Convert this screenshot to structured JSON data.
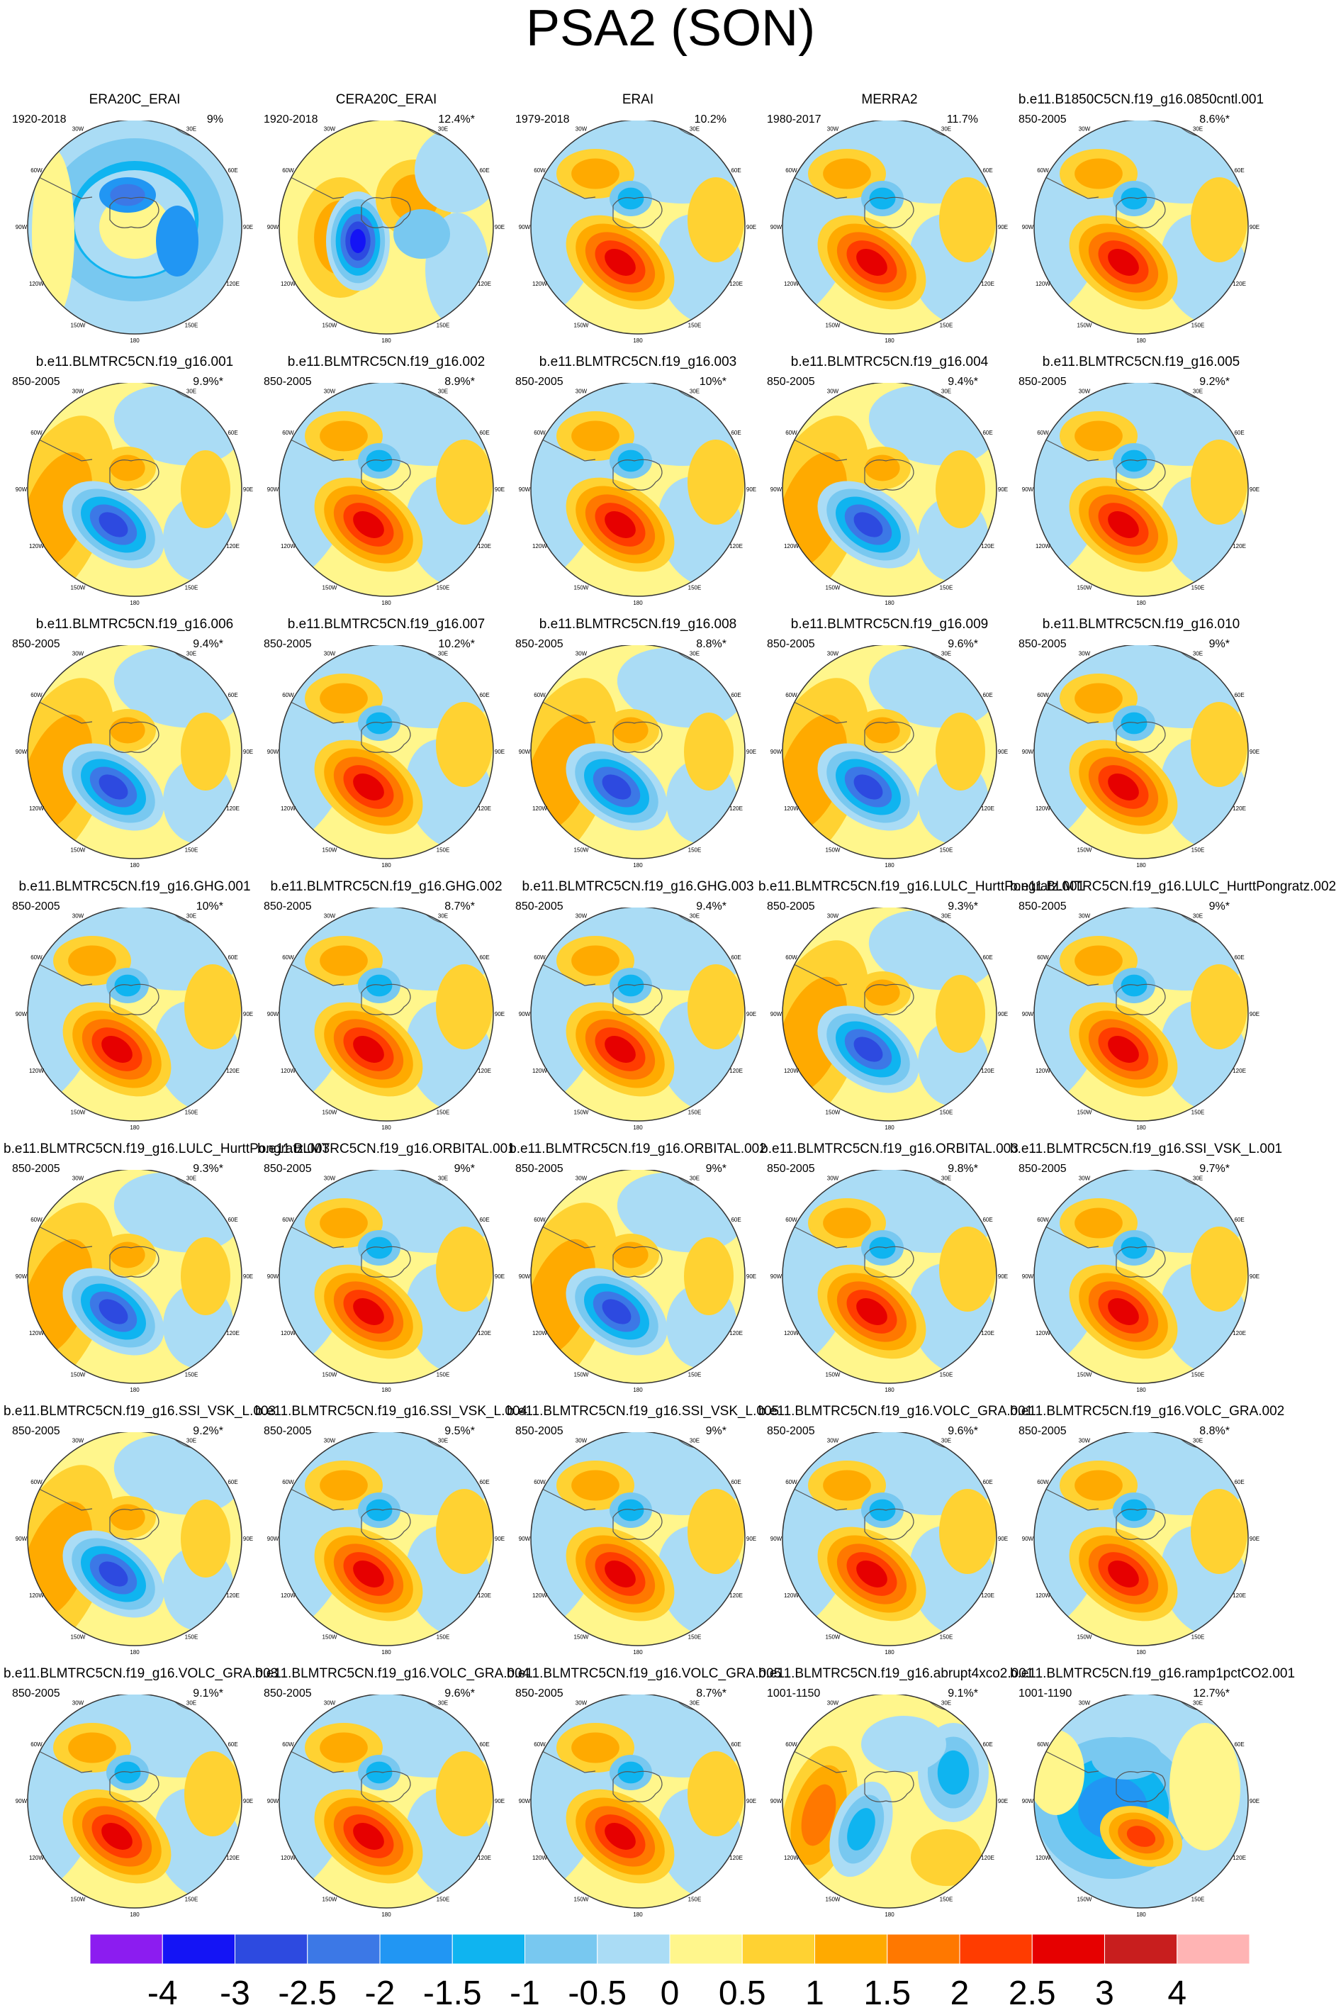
{
  "title": "PSA2 (SON)",
  "colorbar": {
    "labels": [
      "-4",
      "-3",
      "-2.5",
      "-2",
      "-1.5",
      "-1",
      "-0.5",
      "0",
      "0.5",
      "1",
      "1.5",
      "2",
      "2.5",
      "3",
      "4"
    ],
    "colors": [
      "#8c1cf0",
      "#1414f5",
      "#2d4ae0",
      "#3c78e6",
      "#2196f3",
      "#0fb4f0",
      "#78c8f0",
      "#aadcf5",
      "#fff68c",
      "#ffd232",
      "#ffaa00",
      "#ff7800",
      "#ff3c00",
      "#e60000",
      "#c81e1e",
      "#ffb4b4"
    ]
  },
  "panels": [
    {
      "title": "ERA20C_ERAI",
      "years": "1920-2018",
      "pct": "9%",
      "pattern": "ring"
    },
    {
      "title": "CERA20C_ERAI",
      "years": "1920-2018",
      "pct": "12.4%*",
      "pattern": "cera"
    },
    {
      "title": "ERAI",
      "years": "1979-2018",
      "pct": "10.2%",
      "pattern": "pos"
    },
    {
      "title": "MERRA2",
      "years": "1980-2017",
      "pct": "11.7%",
      "pattern": "pos"
    },
    {
      "title": "b.e11.B1850C5CN.f19_g16.0850cntl.001",
      "years": "850-2005",
      "pct": "8.6%*",
      "pattern": "pos"
    },
    {
      "title": "b.e11.BLMTRC5CN.f19_g16.001",
      "years": "850-2005",
      "pct": "9.9%*",
      "pattern": "neg"
    },
    {
      "title": "b.e11.BLMTRC5CN.f19_g16.002",
      "years": "850-2005",
      "pct": "8.9%*",
      "pattern": "pos"
    },
    {
      "title": "b.e11.BLMTRC5CN.f19_g16.003",
      "years": "850-2005",
      "pct": "10%*",
      "pattern": "pos"
    },
    {
      "title": "b.e11.BLMTRC5CN.f19_g16.004",
      "years": "850-2005",
      "pct": "9.4%*",
      "pattern": "neg"
    },
    {
      "title": "b.e11.BLMTRC5CN.f19_g16.005",
      "years": "850-2005",
      "pct": "9.2%*",
      "pattern": "pos"
    },
    {
      "title": "b.e11.BLMTRC5CN.f19_g16.006",
      "years": "850-2005",
      "pct": "9.4%*",
      "pattern": "neg"
    },
    {
      "title": "b.e11.BLMTRC5CN.f19_g16.007",
      "years": "850-2005",
      "pct": "10.2%*",
      "pattern": "pos"
    },
    {
      "title": "b.e11.BLMTRC5CN.f19_g16.008",
      "years": "850-2005",
      "pct": "8.8%*",
      "pattern": "neg"
    },
    {
      "title": "b.e11.BLMTRC5CN.f19_g16.009",
      "years": "850-2005",
      "pct": "9.6%*",
      "pattern": "neg"
    },
    {
      "title": "b.e11.BLMTRC5CN.f19_g16.010",
      "years": "850-2005",
      "pct": "9%*",
      "pattern": "pos"
    },
    {
      "title": "b.e11.BLMTRC5CN.f19_g16.GHG.001",
      "years": "850-2005",
      "pct": "10%*",
      "pattern": "pos"
    },
    {
      "title": "b.e11.BLMTRC5CN.f19_g16.GHG.002",
      "years": "850-2005",
      "pct": "8.7%*",
      "pattern": "pos"
    },
    {
      "title": "b.e11.BLMTRC5CN.f19_g16.GHG.003",
      "years": "850-2005",
      "pct": "9.4%*",
      "pattern": "pos"
    },
    {
      "title": "b.e11.BLMTRC5CN.f19_g16.LULC_HurttPongratz.001",
      "years": "850-2005",
      "pct": "9.3%*",
      "pattern": "neg"
    },
    {
      "title": "b.e11.BLMTRC5CN.f19_g16.LULC_HurttPongratz.002",
      "years": "850-2005",
      "pct": "9%*",
      "pattern": "pos"
    },
    {
      "title": "b.e11.BLMTRC5CN.f19_g16.LULC_HurttPongratz.003",
      "years": "850-2005",
      "pct": "9.3%*",
      "pattern": "neg"
    },
    {
      "title": "b.e11.BLMTRC5CN.f19_g16.ORBITAL.001",
      "years": "850-2005",
      "pct": "9%*",
      "pattern": "pos"
    },
    {
      "title": "b.e11.BLMTRC5CN.f19_g16.ORBITAL.002",
      "years": "850-2005",
      "pct": "9%*",
      "pattern": "neg"
    },
    {
      "title": "b.e11.BLMTRC5CN.f19_g16.ORBITAL.003",
      "years": "850-2005",
      "pct": "9.8%*",
      "pattern": "pos"
    },
    {
      "title": "b.e11.BLMTRC5CN.f19_g16.SSI_VSK_L.001",
      "years": "850-2005",
      "pct": "9.7%*",
      "pattern": "pos"
    },
    {
      "title": "b.e11.BLMTRC5CN.f19_g16.SSI_VSK_L.003",
      "years": "850-2005",
      "pct": "9.2%*",
      "pattern": "neg"
    },
    {
      "title": "b.e11.BLMTRC5CN.f19_g16.SSI_VSK_L.004",
      "years": "850-2005",
      "pct": "9.5%*",
      "pattern": "pos"
    },
    {
      "title": "b.e11.BLMTRC5CN.f19_g16.SSI_VSK_L.005",
      "years": "850-2005",
      "pct": "9%*",
      "pattern": "pos"
    },
    {
      "title": "b.e11.BLMTRC5CN.f19_g16.VOLC_GRA.001",
      "years": "850-2005",
      "pct": "9.6%*",
      "pattern": "pos"
    },
    {
      "title": "b.e11.BLMTRC5CN.f19_g16.VOLC_GRA.002",
      "years": "850-2005",
      "pct": "8.8%*",
      "pattern": "pos"
    },
    {
      "title": "b.e11.BLMTRC5CN.f19_g16.VOLC_GRA.003",
      "years": "850-2005",
      "pct": "9.1%*",
      "pattern": "pos"
    },
    {
      "title": "b.e11.BLMTRC5CN.f19_g16.VOLC_GRA.004",
      "years": "850-2005",
      "pct": "9.6%*",
      "pattern": "pos"
    },
    {
      "title": "b.e11.BLMTRC5CN.f19_g16.VOLC_GRA.005",
      "years": "850-2005",
      "pct": "8.7%*",
      "pattern": "pos"
    },
    {
      "title": "b.e11.BLMTRC5CN.f19_g16.abrupt4xco2.001",
      "years": "1001-1150",
      "pct": "9.1%*",
      "pattern": "abrupt"
    },
    {
      "title": "b.e11.BLMTRC5CN.f19_g16.ramp1pctCO2.001",
      "years": "1001-1190",
      "pct": "12.7%*",
      "pattern": "ramp"
    }
  ],
  "map_labels": {
    "lon": [
      "0",
      "30E",
      "60E",
      "90E",
      "120E",
      "150E",
      "180",
      "150W",
      "120W",
      "90W",
      "60W",
      "30W"
    ]
  },
  "chart_data": {
    "type": "heatmap",
    "title": "PSA2 (SON)",
    "projection": "south-polar-stereographic",
    "panel_count": 35,
    "colorbar_levels": [
      -4,
      -3,
      -2.5,
      -2,
      -1.5,
      -1,
      -0.5,
      0,
      0.5,
      1,
      1.5,
      2,
      2.5,
      3,
      4
    ],
    "variance_explained": [
      "9%",
      "12.4%*",
      "10.2%",
      "11.7%",
      "8.6%*",
      "9.9%*",
      "8.9%*",
      "10%*",
      "9.4%*",
      "9.2%*",
      "9.4%*",
      "10.2%*",
      "8.8%*",
      "9.6%*",
      "9%*",
      "10%*",
      "8.7%*",
      "9.4%*",
      "9.3%*",
      "9%*",
      "9.3%*",
      "9%*",
      "9%*",
      "9.8%*",
      "9.7%*",
      "9.2%*",
      "9.5%*",
      "9%*",
      "9.6%*",
      "8.8%*",
      "9.1%*",
      "9.6%*",
      "8.7%*",
      "9.1%*",
      "12.7%*"
    ]
  }
}
